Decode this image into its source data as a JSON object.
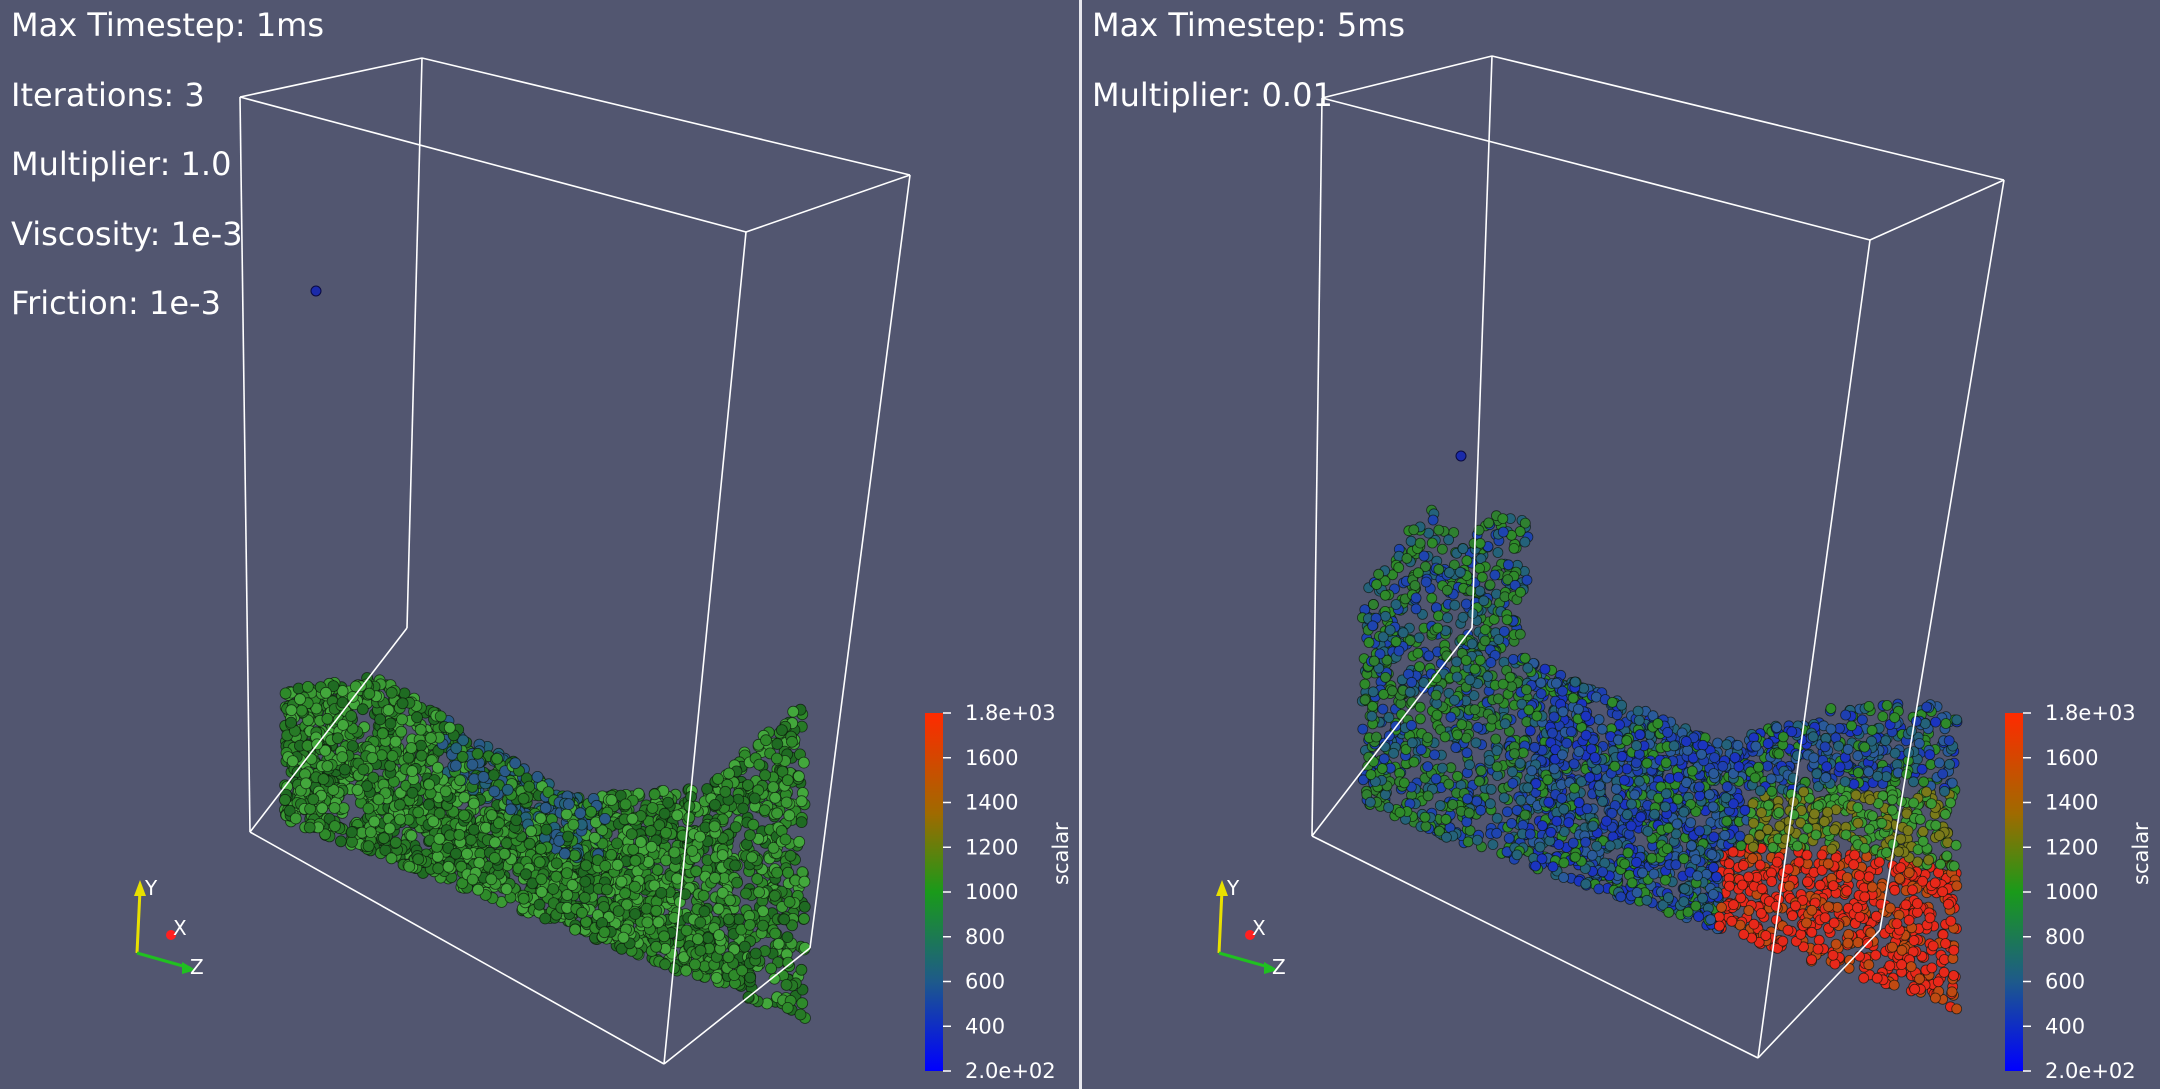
{
  "left": {
    "labels": [
      "Max Timestep: 1ms",
      "Iterations: 3",
      "Multiplier: 1.0",
      "Viscosity: 1e-3",
      "Friction: 1e-3"
    ],
    "particle_coloring": "mostly green (~1000), some blue streaks"
  },
  "right": {
    "labels": [
      "Max Timestep: 5ms",
      "Multiplier: 0.01"
    ],
    "particle_coloring": "blue/green on left, red (~1800) pooled at right bottom"
  },
  "colorbar": {
    "title": "scalar",
    "ticks": [
      "1.8e+03",
      "1600",
      "1400",
      "1200",
      "1000",
      "800",
      "600",
      "400",
      "2.0e+02"
    ],
    "colors": {
      "top": "#ff2a00",
      "upper": "#a66a00",
      "middle": "#1a9a1a",
      "lower": "#1e3fb0",
      "bottom": "#0000ff"
    }
  },
  "axes": {
    "x": "X",
    "y": "Y",
    "z": "Z",
    "x_color": "#ff2020",
    "y_color": "#e8e000",
    "z_color": "#20c020"
  },
  "theme": {
    "background": "#525670",
    "box_color": "#ffffff"
  }
}
